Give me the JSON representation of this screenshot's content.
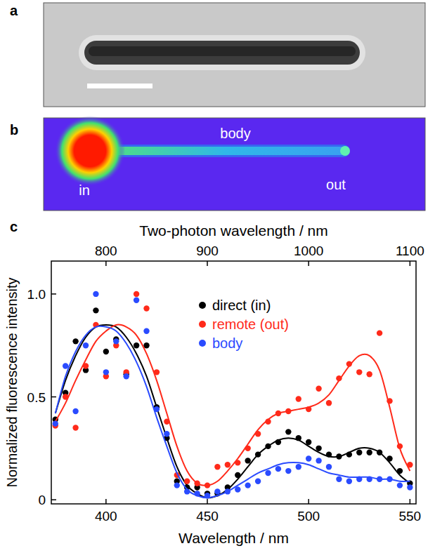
{
  "panels": [
    {
      "label": "a"
    },
    {
      "label": "b",
      "annotations": [
        "in",
        "body",
        "out"
      ]
    },
    {
      "label": "c"
    }
  ],
  "chart_data": {
    "type": "scatter",
    "x_label": "Wavelength / nm",
    "x2_label": "Two-photon wavelength / nm",
    "y_label": "Normalized fluorescence intensity",
    "x": [
      375,
      380,
      385,
      390,
      395,
      400,
      405,
      410,
      415,
      420,
      425,
      430,
      435,
      440,
      445,
      450,
      455,
      460,
      465,
      470,
      475,
      480,
      485,
      490,
      495,
      500,
      505,
      510,
      515,
      520,
      525,
      530,
      535,
      540,
      545,
      550
    ],
    "xlim": [
      373,
      553
    ],
    "xticks": [
      400,
      450,
      500,
      550
    ],
    "x2lim": [
      746,
      1106
    ],
    "x2ticks": [
      800,
      900,
      1000,
      1100
    ],
    "ylim": [
      -0.02,
      1.16
    ],
    "yticks": [
      0,
      0.5,
      {
        "value": 1,
        "label": "1.0"
      }
    ],
    "legend": "top right",
    "grid": false,
    "series": [
      {
        "name": "direct (in)",
        "color": "#000000",
        "marker": "circle",
        "line_style": "solid",
        "values": [
          0.39,
          0.52,
          0.77,
          0.63,
          0.92,
          0.72,
          0.78,
          0.61,
          0.75,
          0.75,
          0.45,
          0.3,
          0.09,
          0.06,
          0.06,
          0.03,
          0.03,
          0.06,
          0.12,
          0.19,
          0.22,
          0.26,
          0.28,
          0.33,
          0.3,
          0.28,
          0.25,
          0.22,
          0.21,
          0.22,
          0.23,
          0.23,
          0.23,
          0.2,
          0.14,
          0.08
        ],
        "fit": [
          0.42,
          0.58,
          0.7,
          0.79,
          0.84,
          0.85,
          0.84,
          0.79,
          0.71,
          0.6,
          0.45,
          0.3,
          0.16,
          0.07,
          0.03,
          0.01,
          0.02,
          0.05,
          0.1,
          0.16,
          0.22,
          0.26,
          0.29,
          0.3,
          0.29,
          0.26,
          0.23,
          0.21,
          0.21,
          0.23,
          0.25,
          0.25,
          0.23,
          0.18,
          0.12,
          0.08
        ]
      },
      {
        "name": "remote (out)",
        "color": "#ff2a1a",
        "marker": "circle",
        "line_style": "solid",
        "values": [
          0.36,
          0.5,
          0.35,
          0.65,
          0.85,
          0.6,
          0.75,
          0.62,
          1.0,
          0.93,
          0.62,
          0.38,
          0.12,
          0.09,
          0.08,
          0.07,
          0.16,
          0.17,
          0.18,
          0.25,
          0.32,
          0.38,
          0.42,
          0.43,
          0.49,
          0.44,
          0.54,
          0.47,
          0.59,
          0.66,
          0.62,
          0.61,
          0.81,
          0.48,
          0.26,
          0.17
        ],
        "fit": [
          0.38,
          0.47,
          0.58,
          0.68,
          0.77,
          0.82,
          0.85,
          0.84,
          0.8,
          0.71,
          0.58,
          0.42,
          0.26,
          0.14,
          0.08,
          0.07,
          0.09,
          0.14,
          0.2,
          0.27,
          0.34,
          0.39,
          0.42,
          0.43,
          0.44,
          0.45,
          0.47,
          0.51,
          0.58,
          0.65,
          0.7,
          0.7,
          0.63,
          0.45,
          0.25,
          0.14
        ]
      },
      {
        "name": "body",
        "color": "#2a4bff",
        "marker": "circle",
        "line_style": "solid",
        "values": [
          0.37,
          0.65,
          0.43,
          0.75,
          1.0,
          0.62,
          0.77,
          0.6,
          0.97,
          0.82,
          0.44,
          0.32,
          0.07,
          0.04,
          0.03,
          0.02,
          0.04,
          0.04,
          0.05,
          0.07,
          0.09,
          0.13,
          0.15,
          0.14,
          0.16,
          0.2,
          0.19,
          0.16,
          0.1,
          0.09,
          0.1,
          0.1,
          0.1,
          0.1,
          0.07,
          0.06
        ],
        "fit": [
          0.42,
          0.6,
          0.72,
          0.8,
          0.84,
          0.84,
          0.82,
          0.76,
          0.67,
          0.55,
          0.4,
          0.26,
          0.13,
          0.05,
          0.02,
          0.01,
          0.02,
          0.04,
          0.07,
          0.1,
          0.13,
          0.15,
          0.17,
          0.18,
          0.18,
          0.17,
          0.15,
          0.13,
          0.12,
          0.11,
          0.11,
          0.11,
          0.1,
          0.1,
          0.09,
          0.09
        ]
      }
    ]
  }
}
